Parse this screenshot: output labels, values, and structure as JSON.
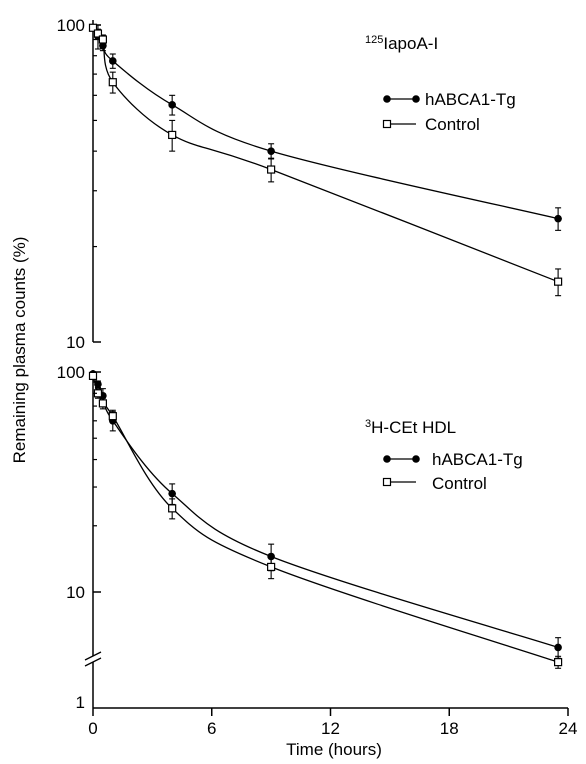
{
  "chart_data": [
    {
      "type": "line",
      "panel": "top",
      "label_sup": "125",
      "label_main": "IapoA-I",
      "y_scale": "log",
      "ylim": [
        10,
        100
      ],
      "y_ticks": [
        "100",
        "10"
      ],
      "grid": false,
      "legend_position": "top-right",
      "series": [
        {
          "name": "hABCA1-Tg",
          "marker": "filled-circle",
          "x": [
            0,
            0.25,
            0.5,
            1,
            4,
            9,
            23.5
          ],
          "y": [
            98,
            92,
            86,
            77,
            56,
            40,
            24.5
          ],
          "err": [
            2,
            8,
            3,
            4,
            4,
            2.2,
            2
          ]
        },
        {
          "name": "Control",
          "marker": "open-square",
          "x": [
            0,
            0.25,
            0.5,
            1,
            4,
            9,
            23.5
          ],
          "y": [
            98,
            94,
            90,
            66,
            45,
            35,
            15.5
          ],
          "err": [
            2,
            3,
            3,
            5,
            5,
            3,
            1.5
          ]
        }
      ]
    },
    {
      "type": "line",
      "panel": "bottom",
      "label_sup": "3",
      "label_main": "H-CEt HDL",
      "y_scale": "log",
      "ylim": [
        1,
        100
      ],
      "y_ticks": [
        "100",
        "10",
        "1"
      ],
      "y_break": true,
      "grid": false,
      "legend_position": "top-right",
      "series": [
        {
          "name": "hABCA1-Tg",
          "marker": "filled-circle",
          "x": [
            0,
            0.25,
            0.5,
            1,
            4,
            9,
            23.5
          ],
          "y": [
            98,
            88,
            78,
            60,
            28,
            14.5,
            5.6
          ],
          "err": [
            2,
            3,
            6,
            6,
            3,
            2,
            0.6
          ]
        },
        {
          "name": "Control",
          "marker": "open-square",
          "x": [
            0,
            0.25,
            0.5,
            1,
            4,
            9,
            23.5
          ],
          "y": [
            96,
            80,
            72,
            63,
            24,
            13,
            4.8
          ],
          "err": [
            2,
            4,
            4,
            4,
            2.5,
            1.5,
            0.3
          ]
        }
      ]
    }
  ],
  "x_axis": {
    "label": "Time (hours)",
    "range": [
      0,
      24
    ],
    "ticks": [
      "0",
      "6",
      "12",
      "18",
      "24"
    ]
  },
  "y_axis": {
    "label": "Remaining plasma counts (%)"
  }
}
